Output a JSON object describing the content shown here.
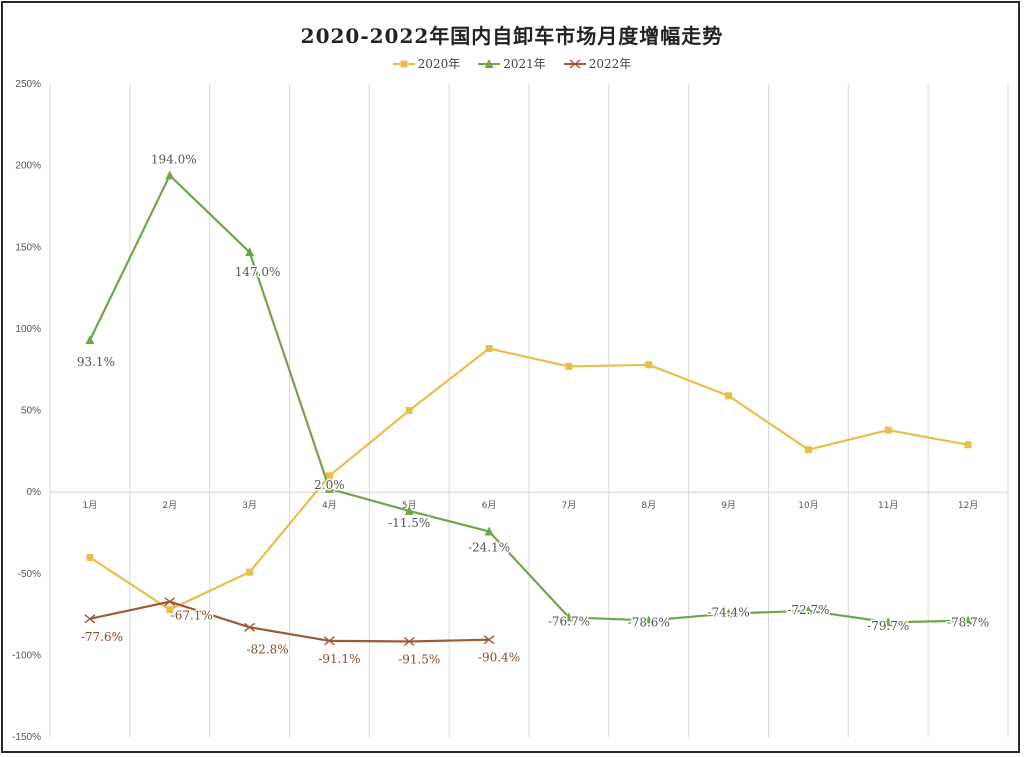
{
  "chart_data": {
    "type": "line",
    "title": "2020-2022年国内自卸车市场月度增幅走势",
    "xlabel": "",
    "ylabel": "",
    "ylim": [
      -150,
      250
    ],
    "yticks": [
      250,
      200,
      150,
      100,
      50,
      0,
      -50,
      -100,
      -150
    ],
    "ytick_labels": [
      "250%",
      "200%",
      "150%",
      "100%",
      "50%",
      "0%",
      "-50%",
      "-100%",
      "-150%"
    ],
    "categories": [
      "1月",
      "2月",
      "3月",
      "4月",
      "5月",
      "6月",
      "7月",
      "8月",
      "9月",
      "10月",
      "11月",
      "12月"
    ],
    "grid": {
      "vertical": true,
      "horizontal": false
    },
    "legend_position": "top",
    "series": [
      {
        "name": "2020年",
        "color": "#EBBE4B",
        "marker": "square",
        "values": [
          -40,
          -72,
          -49,
          10,
          50,
          88,
          77,
          78,
          59,
          26,
          38,
          29
        ],
        "labels": []
      },
      {
        "name": "2021年",
        "color": "#6FA64A",
        "marker": "triangle",
        "values": [
          93.1,
          194.0,
          147.0,
          2.0,
          -11.5,
          -24.1,
          -76.7,
          -78.6,
          -74.4,
          -72.7,
          -79.7,
          -78.7
        ],
        "labels": [
          "93.1%",
          "194.0%",
          "147.0%",
          "2.0%",
          "-11.5%",
          "-24.1%",
          "-76.7%",
          "-78.6%",
          "-74.4%",
          "-72.7%",
          "-79.7%",
          "-78.7%"
        ]
      },
      {
        "name": "2022年",
        "color": "#9E5A36",
        "marker": "x",
        "values": [
          -77.6,
          -67.1,
          -82.8,
          -91.1,
          -91.5,
          -90.4,
          null,
          null,
          null,
          null,
          null,
          null
        ],
        "labels": [
          "-77.6%",
          "-67.1%",
          "-82.8%",
          "-91.1%",
          "-91.5%",
          "-90.4%"
        ]
      }
    ]
  }
}
